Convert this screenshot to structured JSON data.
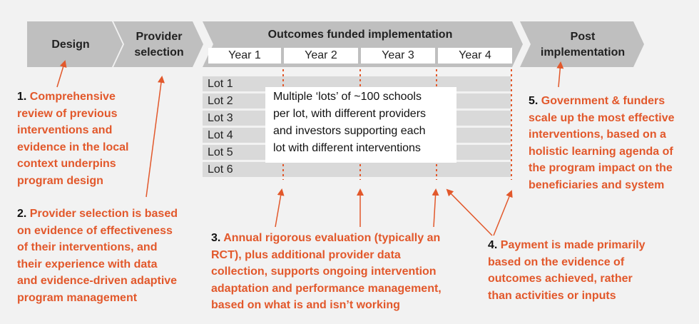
{
  "stages": {
    "design": "Design",
    "provider_line1": "Provider",
    "provider_line2": "selection",
    "outcomes": "Outcomes funded implementation",
    "post_line1": "Post",
    "post_line2": "implementation"
  },
  "years": [
    "Year 1",
    "Year 2",
    "Year 3",
    "Year 4"
  ],
  "lots": [
    "Lot 1",
    "Lot 2",
    "Lot 3",
    "Lot 4",
    "Lot 5",
    "Lot 6"
  ],
  "lots_note": [
    "Multiple ‘lots’ of ~100 schools",
    "per lot, with different providers",
    "and investors supporting each",
    "lot with different interventions"
  ],
  "callouts": [
    {
      "num": "1.",
      "lines": [
        "Comprehensive",
        "review of previous",
        "interventions and",
        "evidence in the local",
        "context underpins",
        "program design"
      ]
    },
    {
      "num": "2.",
      "lines": [
        "Provider selection is based",
        "on evidence of effectiveness",
        "of their interventions, and",
        "their experience with data",
        "and evidence-driven adaptive",
        "program management"
      ]
    },
    {
      "num": "3.",
      "lines": [
        "Annual rigorous evaluation (typically an",
        "RCT), plus additional provider data",
        "collection, supports ongoing intervention",
        "adaptation and performance management,",
        "based on what is and isn’t working"
      ]
    },
    {
      "num": "4.",
      "lines": [
        "Payment is made primarily",
        "based on the evidence of",
        "outcomes achieved, rather",
        "than activities or inputs"
      ]
    },
    {
      "num": "5.",
      "lines": [
        "Government & funders",
        "scale up the most effective",
        "interventions, based on a",
        "holistic learning agenda of",
        "the program impact on the",
        "beneficiaries and system"
      ]
    }
  ],
  "colors": {
    "accent": "#e2582b",
    "chevron": "#bfbfbf",
    "lot_bar": "#d9d9d9",
    "background": "#f2f2f2"
  }
}
